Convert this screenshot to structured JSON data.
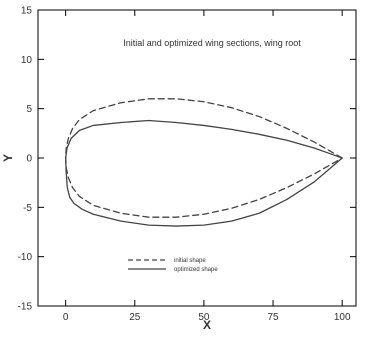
{
  "chart_data": {
    "type": "line",
    "title": "Initial and optimized wing sections, wing root",
    "xlabel": "X",
    "ylabel": "Y",
    "xlim": [
      -10,
      105
    ],
    "ylim": [
      -15,
      15
    ],
    "x_ticks": [
      0,
      25,
      50,
      75,
      100
    ],
    "y_ticks": [
      -15,
      -10,
      -5,
      0,
      5,
      10,
      15
    ],
    "x_tick_labels": [
      "0",
      "25",
      "50",
      "75",
      "100"
    ],
    "y_tick_labels": [
      "-15",
      "-10",
      "-5",
      "0",
      "5",
      "10",
      "15"
    ],
    "grid": false,
    "legend_position": "bottom-center",
    "series": [
      {
        "name": "initial shape",
        "style": "dashed",
        "color": "#444444",
        "points": [
          [
            100,
            0.0
          ],
          [
            95,
            0.8
          ],
          [
            90,
            1.6
          ],
          [
            80,
            3.0
          ],
          [
            70,
            4.2
          ],
          [
            60,
            5.1
          ],
          [
            50,
            5.7
          ],
          [
            40,
            6.0
          ],
          [
            30,
            6.0
          ],
          [
            20,
            5.6
          ],
          [
            10,
            4.8
          ],
          [
            5,
            3.9
          ],
          [
            2.5,
            3.0
          ],
          [
            1,
            2.0
          ],
          [
            0.2,
            1.0
          ],
          [
            0,
            0.0
          ],
          [
            0.2,
            -1.0
          ],
          [
            1,
            -2.0
          ],
          [
            2.5,
            -3.0
          ],
          [
            5,
            -3.9
          ],
          [
            10,
            -4.8
          ],
          [
            20,
            -5.6
          ],
          [
            30,
            -6.0
          ],
          [
            40,
            -6.0
          ],
          [
            50,
            -5.7
          ],
          [
            60,
            -5.1
          ],
          [
            70,
            -4.2
          ],
          [
            80,
            -3.0
          ],
          [
            90,
            -1.6
          ],
          [
            95,
            -0.8
          ],
          [
            100,
            0.0
          ]
        ]
      },
      {
        "name": "optimized shape",
        "style": "solid",
        "color": "#444444",
        "points": [
          [
            100,
            0.0
          ],
          [
            95,
            0.5
          ],
          [
            90,
            1.0
          ],
          [
            80,
            1.8
          ],
          [
            70,
            2.4
          ],
          [
            60,
            2.9
          ],
          [
            50,
            3.3
          ],
          [
            40,
            3.6
          ],
          [
            30,
            3.8
          ],
          [
            20,
            3.6
          ],
          [
            10,
            3.3
          ],
          [
            5,
            2.8
          ],
          [
            2,
            2.0
          ],
          [
            0.5,
            1.0
          ],
          [
            0,
            0.0
          ],
          [
            0.2,
            -1.5
          ],
          [
            0.6,
            -3.0
          ],
          [
            1.5,
            -4.0
          ],
          [
            3,
            -4.6
          ],
          [
            6,
            -5.2
          ],
          [
            10,
            -5.7
          ],
          [
            20,
            -6.4
          ],
          [
            30,
            -6.8
          ],
          [
            40,
            -6.9
          ],
          [
            50,
            -6.8
          ],
          [
            60,
            -6.4
          ],
          [
            70,
            -5.6
          ],
          [
            80,
            -4.2
          ],
          [
            90,
            -2.4
          ],
          [
            95,
            -1.2
          ],
          [
            100,
            0.0
          ]
        ]
      }
    ]
  }
}
